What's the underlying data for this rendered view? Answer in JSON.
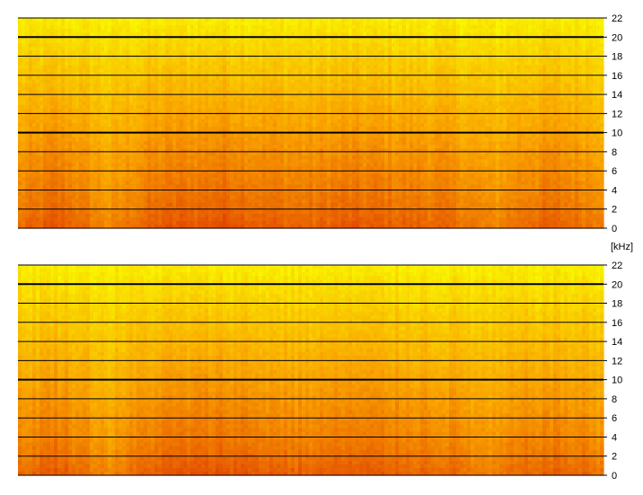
{
  "chart_data": {
    "type": "heatmap",
    "unit_label": "[kHz]",
    "ylim": [
      0,
      22
    ],
    "y_ticks": [
      0,
      2,
      4,
      6,
      8,
      10,
      12,
      14,
      16,
      18,
      20,
      22
    ],
    "y_tick_labels": [
      "0",
      "2",
      "4",
      "6",
      "8",
      "10",
      "12",
      "14",
      "16",
      "18",
      "20",
      "22"
    ],
    "major_gridlines": [
      10,
      20
    ],
    "grid": true,
    "colormap": {
      "low_energy": "#ffff00",
      "mid_energy": "#ffa500",
      "high_energy": "#e64000"
    },
    "channels": [
      {
        "energy_profile_by_frequency": [
          0.98,
          0.86,
          0.78,
          0.72,
          0.66,
          0.58,
          0.5,
          0.42,
          0.34,
          0.26,
          0.16,
          0.06
        ],
        "time_profile": [
          0.55,
          0.7,
          0.9,
          0.75,
          0.5,
          0.25,
          0.5,
          0.75,
          0.85,
          0.9,
          0.9,
          1.0,
          0.95,
          0.85,
          0.8,
          0.75,
          0.72,
          0.78,
          0.85,
          0.8,
          0.8,
          0.75,
          0.72,
          0.7,
          0.6,
          0.45,
          0.3,
          0.55,
          0.7,
          0.75,
          0.7,
          0.6,
          0.5
        ]
      },
      {
        "energy_profile_by_frequency": [
          0.98,
          0.84,
          0.76,
          0.7,
          0.64,
          0.56,
          0.48,
          0.4,
          0.32,
          0.24,
          0.14,
          0.05
        ],
        "time_profile": [
          0.55,
          0.72,
          0.9,
          0.75,
          0.5,
          0.3,
          0.5,
          0.75,
          0.85,
          0.9,
          0.88,
          0.95,
          0.92,
          0.85,
          0.8,
          0.75,
          0.72,
          0.78,
          0.85,
          0.8,
          0.8,
          0.75,
          0.72,
          0.68,
          0.6,
          0.45,
          0.3,
          0.55,
          0.7,
          0.75,
          0.7,
          0.62,
          0.5
        ]
      }
    ]
  }
}
